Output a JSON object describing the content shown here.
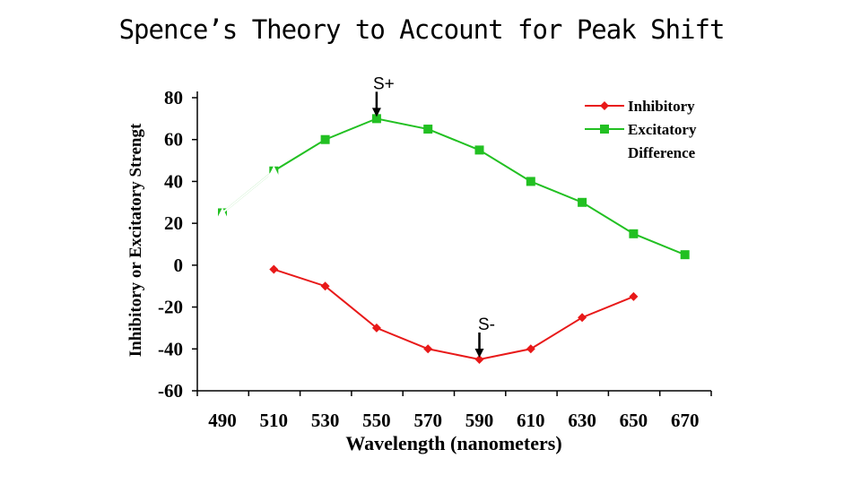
{
  "slide": {
    "title": "Spence’s Theory to Account for  Peak Shift"
  },
  "chart_data": {
    "type": "line",
    "xlabel": "Wavelength (nanometers)",
    "ylabel": "Inhibitory or Excitatory Strengt",
    "x": [
      490,
      510,
      530,
      550,
      570,
      590,
      610,
      630,
      650,
      670
    ],
    "ylim": [
      -60,
      80
    ],
    "yticks": [
      80,
      60,
      40,
      20,
      0,
      -20,
      -40,
      -60
    ],
    "legend_position": "top-right",
    "series": [
      {
        "name": "Inhibitory",
        "color": "#e81919",
        "marker": "diamond",
        "values": [
          null,
          -2,
          -10,
          -30,
          -40,
          -45,
          -40,
          -25,
          -15,
          null
        ]
      },
      {
        "name": "Excitatory",
        "color": "#22c022",
        "marker": "square",
        "values": [
          25,
          45,
          60,
          70,
          65,
          55,
          40,
          30,
          15,
          5
        ]
      },
      {
        "name": "Difference",
        "color": "#ffffff",
        "marker": "triangle",
        "values": [
          25,
          45,
          null,
          null,
          null,
          null,
          null,
          null,
          null,
          null
        ]
      }
    ],
    "annotations": [
      {
        "text": "S+",
        "x": 550,
        "y": 70,
        "position": "above"
      },
      {
        "text": "S-",
        "x": 590,
        "y": -45,
        "position": "above"
      }
    ]
  }
}
